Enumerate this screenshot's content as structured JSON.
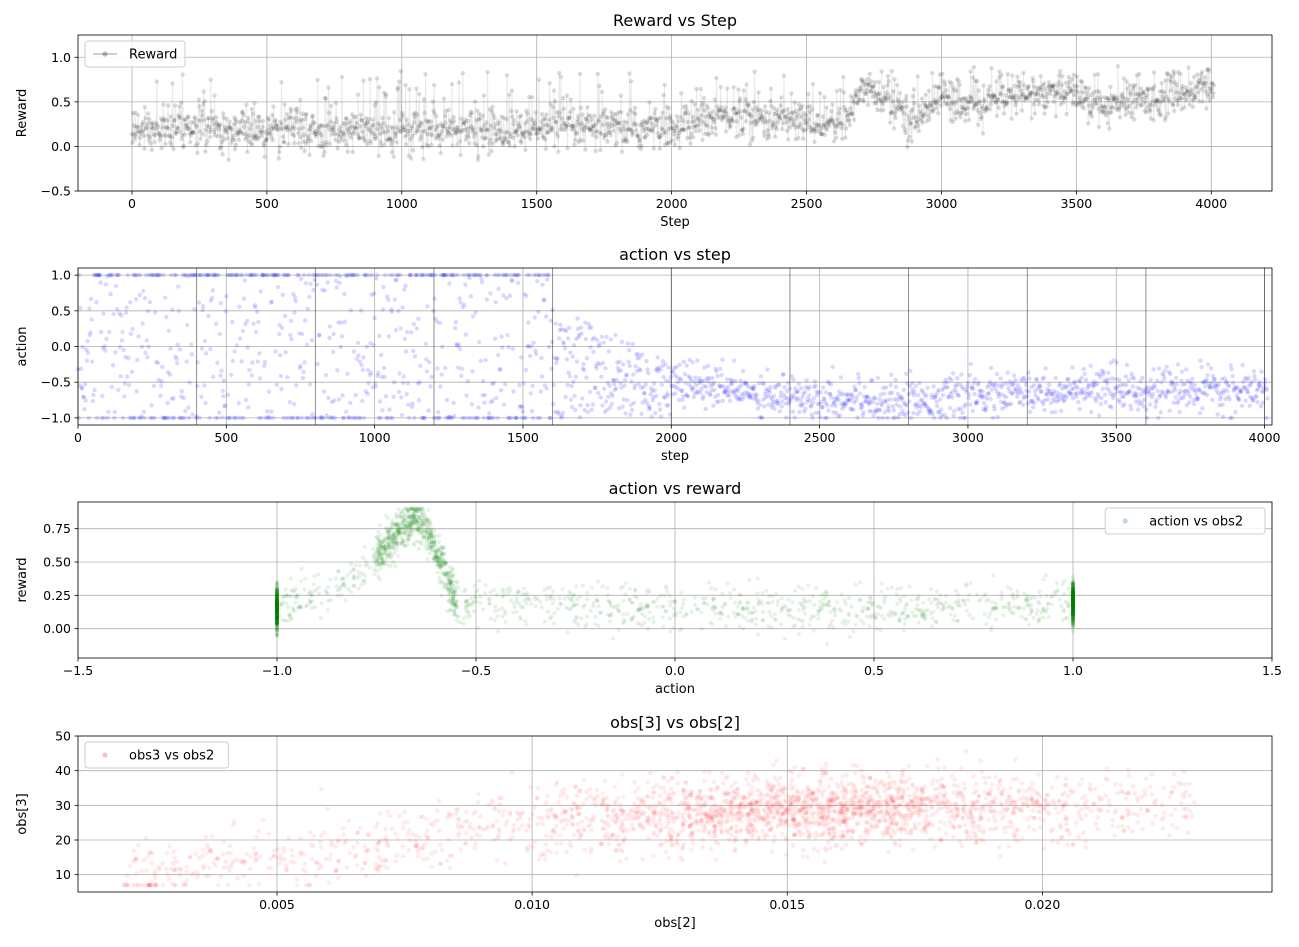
{
  "figure": {
    "background": "#ffffff"
  },
  "chart_data": [
    {
      "type": "line",
      "title": "Reward vs Step",
      "xlabel": "Step",
      "ylabel": "Reward",
      "xlim": [
        -200,
        4225
      ],
      "ylim": [
        -0.5,
        1.25
      ],
      "xticks": [
        0,
        500,
        1000,
        1500,
        2000,
        2500,
        3000,
        3500,
        4000
      ],
      "yticks": [
        -0.5,
        0.0,
        0.5,
        1.0
      ],
      "xtick_labels": [
        "0",
        "500",
        "1000",
        "1500",
        "2000",
        "2500",
        "3000",
        "3500",
        "4000"
      ],
      "ytick_labels": [
        "−0.5",
        "0.0",
        "0.5",
        "1.0"
      ],
      "grid": true,
      "legend_position": "top-left",
      "series": [
        {
          "name": "Reward",
          "color": "#000000",
          "marker": "circle",
          "alpha": 0.15,
          "approx_trend": {
            "x": [
              0,
              500,
              1000,
              1500,
              2000,
              2200,
              2400,
              2650,
              2700,
              2900,
              3000,
              3100,
              3200,
              3500,
              3600,
              4000
            ],
            "y": [
              0.18,
              0.18,
              0.18,
              0.18,
              0.2,
              0.35,
              0.3,
              0.25,
              0.7,
              0.3,
              0.6,
              0.4,
              0.55,
              0.6,
              0.45,
              0.65
            ]
          }
        }
      ]
    },
    {
      "type": "scatter",
      "title": "action vs step",
      "xlabel": "step",
      "ylabel": "action",
      "xlim": [
        0,
        4025
      ],
      "ylim": [
        -1.1,
        1.1
      ],
      "xticks": [
        0,
        500,
        1000,
        1500,
        2000,
        2500,
        3000,
        3500,
        4000
      ],
      "yticks": [
        -1.0,
        -0.5,
        0.0,
        0.5,
        1.0
      ],
      "xtick_labels": [
        "0",
        "500",
        "1000",
        "1500",
        "2000",
        "2500",
        "3000",
        "3500",
        "4000"
      ],
      "ytick_labels": [
        "−1.0",
        "−0.5",
        "0.0",
        "0.5",
        "1.0"
      ],
      "grid": true,
      "episode_boundaries": [
        400,
        800,
        1200,
        1600,
        2000,
        2400,
        2800,
        3200,
        3600,
        4000
      ],
      "series": [
        {
          "color": "#0000ff",
          "alpha": 0.15,
          "approx_trend": {
            "x": [
              0,
              1600,
              2000,
              2400,
              2800,
              3200,
              3600,
              4000
            ],
            "y": [
              0.0,
              0.0,
              -0.5,
              -0.7,
              -0.75,
              -0.65,
              -0.6,
              -0.65
            ]
          }
        }
      ]
    },
    {
      "type": "scatter",
      "title": "action vs reward",
      "xlabel": "action",
      "ylabel": "reward",
      "xlim": [
        -1.5,
        1.5
      ],
      "ylim": [
        -0.22,
        0.95
      ],
      "xticks": [
        -1.5,
        -1.0,
        -0.5,
        0.0,
        0.5,
        1.0,
        1.5
      ],
      "yticks": [
        0.0,
        0.25,
        0.5,
        0.75
      ],
      "xtick_labels": [
        "−1.5",
        "−1.0",
        "−0.5",
        "0.0",
        "0.5",
        "1.0",
        "1.5"
      ],
      "ytick_labels": [
        "0.00",
        "0.25",
        "0.50",
        "0.75"
      ],
      "grid": true,
      "legend_position": "top-right",
      "series": [
        {
          "name": "action vs obs2",
          "color": "#008000",
          "alpha": 0.1,
          "approx_trend": {
            "x": [
              -1.0,
              -0.9,
              -0.8,
              -0.7,
              -0.65,
              -0.6,
              -0.55,
              -0.5,
              0.0,
              0.5,
              1.0
            ],
            "y": [
              0.15,
              0.25,
              0.4,
              0.7,
              0.85,
              0.6,
              0.2,
              0.2,
              0.15,
              0.15,
              0.2
            ]
          }
        }
      ]
    },
    {
      "type": "scatter",
      "title": "obs[3] vs obs[2]",
      "xlabel": "obs[2]",
      "ylabel": "obs[3]",
      "xlim": [
        0.0011,
        0.0245
      ],
      "ylim": [
        5,
        50
      ],
      "xticks": [
        0.005,
        0.01,
        0.015,
        0.02
      ],
      "yticks": [
        10,
        20,
        30,
        40,
        50
      ],
      "xtick_labels": [
        "0.005",
        "0.010",
        "0.015",
        "0.020"
      ],
      "ytick_labels": [
        "10",
        "20",
        "30",
        "40",
        "50"
      ],
      "grid": true,
      "legend_position": "top-left",
      "series": [
        {
          "name": "obs3 vs obs2",
          "color": "#ff0000",
          "alpha": 0.08,
          "approx_trend": {
            "x": [
              0.002,
              0.004,
              0.006,
              0.008,
              0.01,
              0.012,
              0.015,
              0.018,
              0.021,
              0.023
            ],
            "y": [
              9,
              13,
              17,
              21,
              24,
              26,
              29,
              29,
              30,
              30
            ]
          }
        }
      ]
    }
  ]
}
